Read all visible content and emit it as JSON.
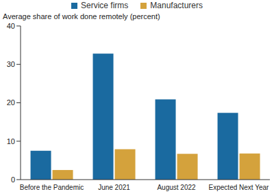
{
  "chart_data": {
    "type": "bar",
    "ylabel": "Average share of work done remotely (percent)",
    "categories": [
      "Before the Pandemic",
      "June 2021",
      "August 2022",
      "Expected Next Year"
    ],
    "series": [
      {
        "name": "Service firms",
        "color": "#1a6aa0",
        "values": [
          7.5,
          32.8,
          20.9,
          17.4
        ]
      },
      {
        "name": "Manufacturers",
        "color": "#d4a23c",
        "values": [
          2.5,
          7.9,
          6.7,
          6.8
        ]
      }
    ],
    "ylim": [
      0,
      40
    ],
    "yticks": [
      0,
      10,
      20,
      30,
      40
    ],
    "grid": false,
    "legend": "top"
  }
}
